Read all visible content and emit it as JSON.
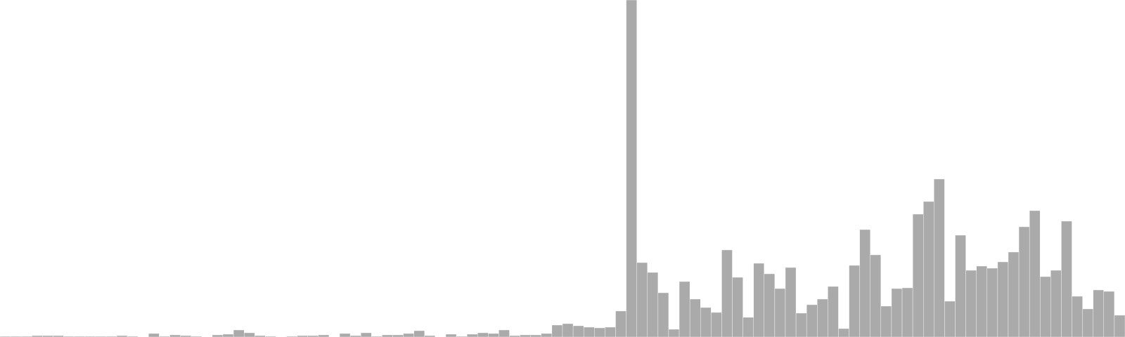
{
  "colors": {
    "bar_fill": "#aaaaaa",
    "bar_edge": "#ffffff",
    "background": "#ffffff"
  },
  "chart_data": {
    "type": "bar",
    "title": "",
    "xlabel": "",
    "ylabel": "",
    "axes_visible": false,
    "grid": false,
    "legend": "none",
    "ylim": [
      0,
      480
    ],
    "values": [
      1,
      1,
      1,
      2,
      2,
      2,
      1,
      1,
      1,
      1,
      1,
      2,
      1,
      0,
      5,
      1,
      3,
      2,
      1,
      0,
      3,
      4,
      10,
      6,
      2,
      1,
      0,
      1,
      2,
      2,
      3,
      0,
      5,
      2,
      6,
      1,
      3,
      3,
      5,
      9,
      2,
      0,
      4,
      1,
      4,
      6,
      5,
      10,
      2,
      3,
      3,
      5,
      17,
      19,
      16,
      14,
      13,
      14,
      37,
      480,
      106,
      92,
      63,
      11,
      79,
      54,
      42,
      35,
      124,
      85,
      28,
      105,
      90,
      69,
      99,
      34,
      46,
      54,
      72,
      12,
      102,
      153,
      117,
      44,
      69,
      70,
      175,
      193,
      225,
      51,
      145,
      95,
      101,
      98,
      107,
      121,
      157,
      180,
      86,
      95,
      165,
      58,
      40,
      67,
      65,
      31
    ]
  }
}
